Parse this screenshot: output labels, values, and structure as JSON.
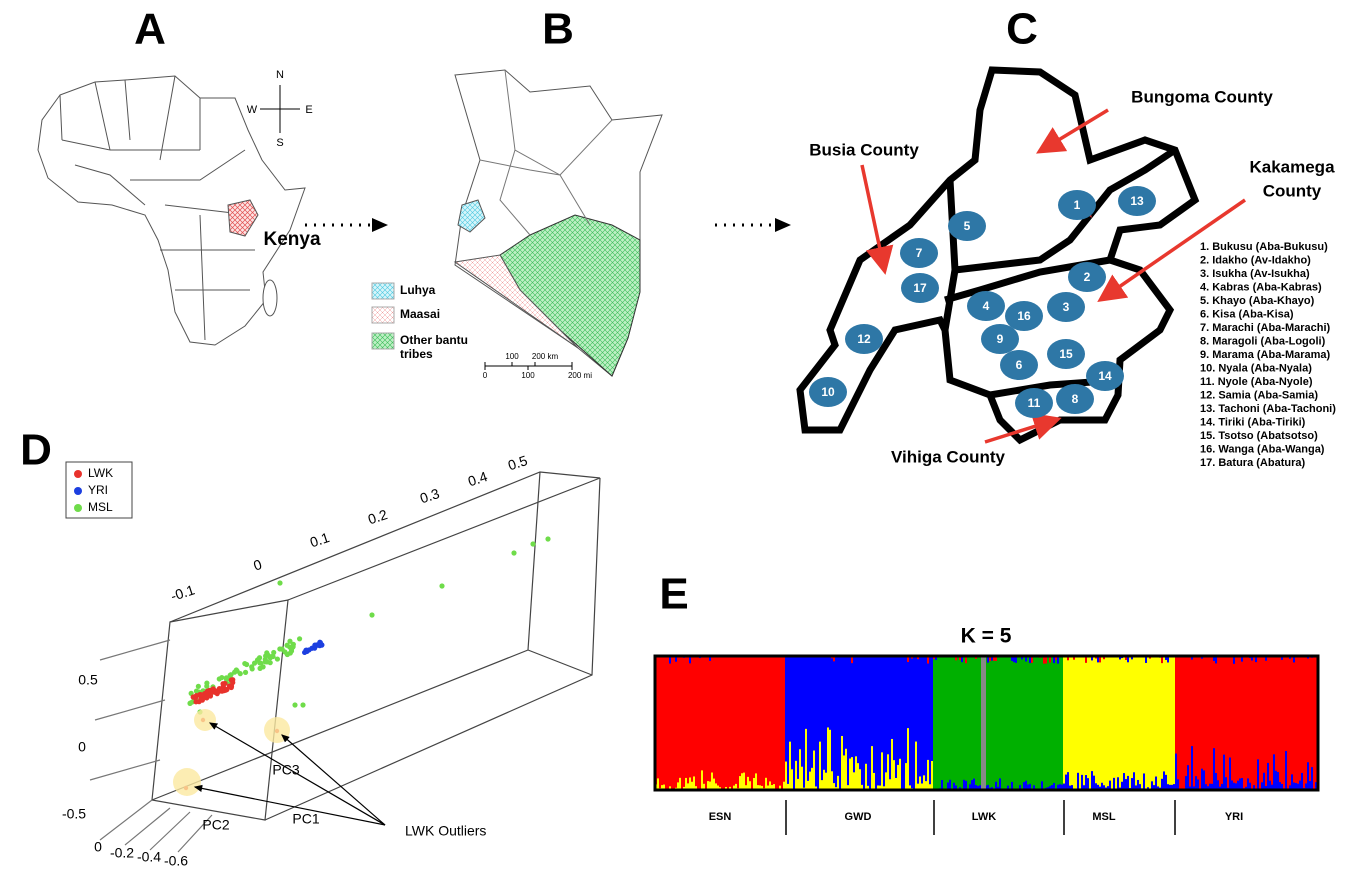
{
  "panels": {
    "a": {
      "letter": "A",
      "compass": {
        "n": "N",
        "s": "S",
        "w": "W",
        "e": "E"
      },
      "label": "Kenya"
    },
    "b": {
      "letter": "B",
      "legend": [
        [
          "Luhya"
        ],
        [
          "Maasai"
        ],
        [
          "Other bantu",
          "tribes"
        ]
      ],
      "scale_km": [
        "100",
        "200 km"
      ],
      "scale_mi": [
        "0",
        "100",
        "200 mi"
      ]
    },
    "c": {
      "letter": "C",
      "counties": [
        [
          "Bungoma County"
        ],
        [
          "Busia County"
        ],
        [
          "Kakamega",
          "County"
        ],
        [
          "Vihiga County"
        ]
      ],
      "markers": [
        "1",
        "2",
        "3",
        "4",
        "5",
        "6",
        "7",
        "8",
        "9",
        "10",
        "11",
        "12",
        "13",
        "14",
        "15",
        "16",
        "17"
      ],
      "tribes": [
        "1. Bukusu (Aba-Bukusu)",
        "2. Idakho (Av-Idakho)",
        "3. Isukha (Av-Isukha)",
        "4. Kabras (Aba-Kabras)",
        "5. Khayo (Aba-Khayo)",
        "6. Kisa (Aba-Kisa)",
        "7. Marachi (Aba-Marachi)",
        "8. Maragoli (Aba-Logoli)",
        "9. Marama (Aba-Marama)",
        "10. Nyala (Aba-Nyala)",
        "11. Nyole (Aba-Nyole)",
        "12. Samia (Aba-Samia)",
        "13. Tachoni (Aba-Tachoni)",
        "14. Tiriki (Aba-Tiriki)",
        "15. Tsotso (Abatsotso)",
        "16. Wanga (Aba-Wanga)",
        "17. Batura (Abatura)"
      ]
    },
    "d": {
      "letter": "D",
      "legend": [
        "LWK",
        "YRI",
        "MSL"
      ],
      "pc1_ticks": [
        "-0.1",
        "0",
        "0.1",
        "0.2",
        "0.3",
        "0.4",
        "0.5"
      ],
      "pc3_ticks": [
        "0.5",
        "0",
        "-0.5"
      ],
      "pc2_ticks": [
        "0",
        "-0.2",
        "-0.4",
        "-0.6"
      ],
      "axis_labels": [
        "PC1",
        "PC2",
        "PC3"
      ],
      "annotation": "LWK Outliers"
    },
    "e": {
      "letter": "E",
      "title": "K = 5",
      "groups": [
        "ESN",
        "GWD",
        "LWK",
        "MSL",
        "YRI"
      ]
    }
  }
}
